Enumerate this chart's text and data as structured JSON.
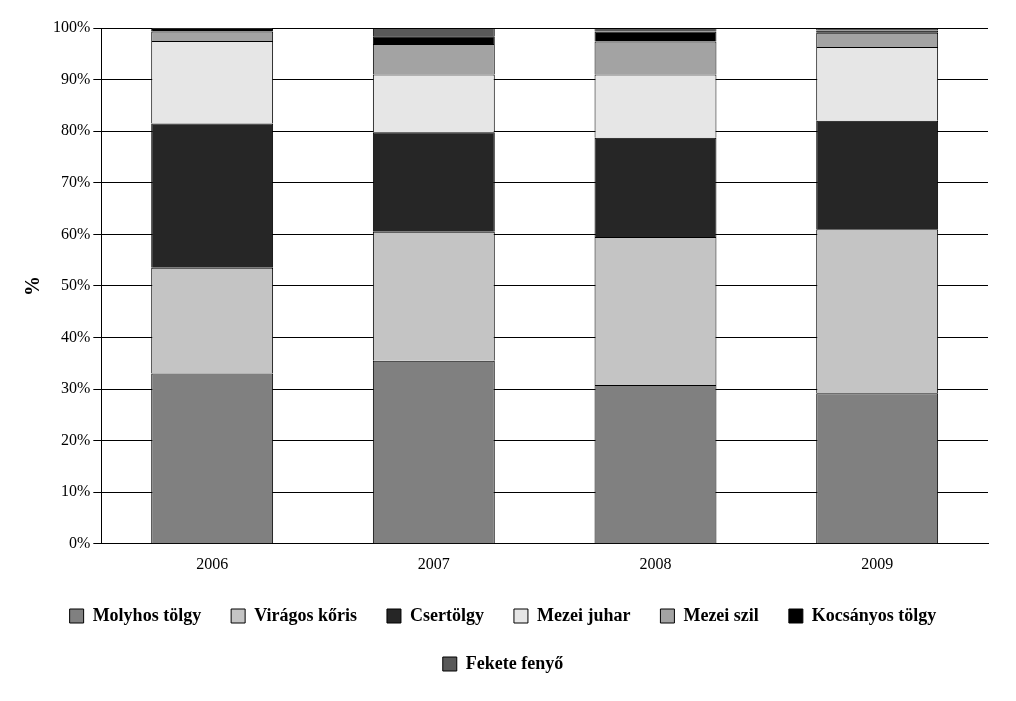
{
  "chart_data": {
    "type": "bar",
    "stacked": true,
    "ylabel": "%",
    "categories": [
      "2006",
      "2007",
      "2008",
      "2009"
    ],
    "series": [
      {
        "name": "Molyhos tölgy",
        "color": "#808080",
        "values": [
          33,
          35.5,
          30.8,
          29.2
        ]
      },
      {
        "name": "Virágos kőris",
        "color": "#c4c4c4",
        "values": [
          20.5,
          25,
          28.7,
          31.8
        ]
      },
      {
        "name": "Csertölgy",
        "color": "#262626",
        "values": [
          28,
          19.3,
          19.2,
          21
        ]
      },
      {
        "name": "Mezei juhar",
        "color": "#e6e6e6",
        "values": [
          16,
          11.2,
          12.3,
          14.3
        ]
      },
      {
        "name": "Mezei szil",
        "color": "#a3a3a3",
        "values": [
          1.8,
          5.9,
          6.4,
          2.8
        ]
      },
      {
        "name": "Kocsányos tölgy",
        "color": "#000000",
        "values": [
          0.5,
          1.5,
          1.9,
          0.4
        ]
      },
      {
        "name": "Fekete fenyő",
        "color": "#595959",
        "values": [
          0.2,
          1.6,
          0.7,
          0.5
        ]
      }
    ],
    "ylim": [
      0,
      100
    ],
    "yticks": [
      {
        "value": 0,
        "label": "0%"
      },
      {
        "value": 10,
        "label": "10%"
      },
      {
        "value": 20,
        "label": "20%"
      },
      {
        "value": 30,
        "label": "30%"
      },
      {
        "value": 40,
        "label": "40%"
      },
      {
        "value": 50,
        "label": "50%"
      },
      {
        "value": 60,
        "label": "60%"
      },
      {
        "value": 70,
        "label": "70%"
      },
      {
        "value": 80,
        "label": "80%"
      },
      {
        "value": 90,
        "label": "90%"
      },
      {
        "value": 100,
        "label": "100%"
      }
    ],
    "grid": "y",
    "legend": "bottom"
  }
}
